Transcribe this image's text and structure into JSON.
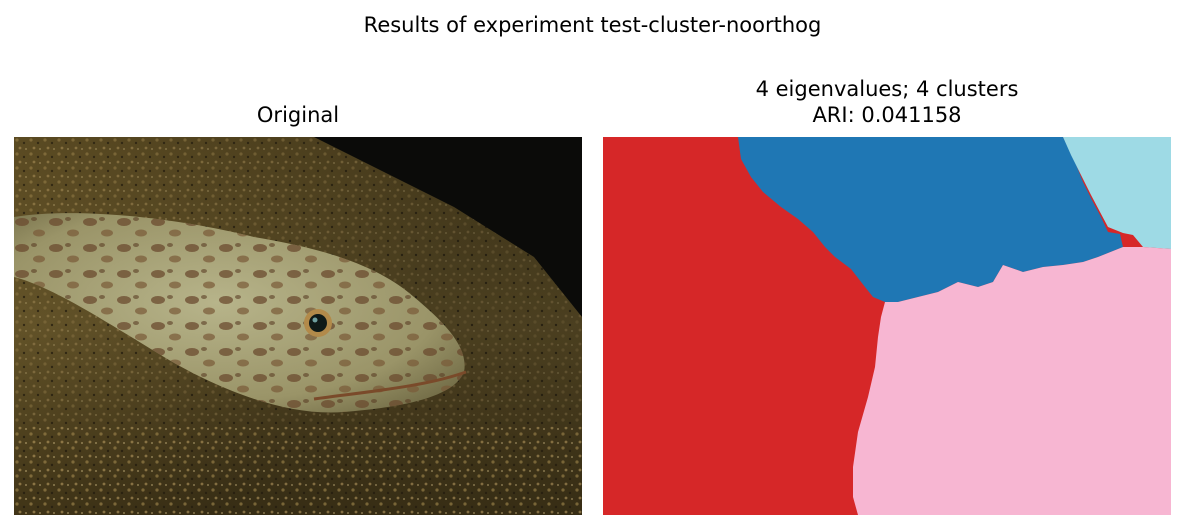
{
  "figure": {
    "suptitle": "Results of experiment test-cluster-noorthog"
  },
  "panels": [
    {
      "title_line1": "Original"
    },
    {
      "title_line1": "4 eigenvalues; 4 clusters",
      "title_line2": "ARI: 0.041158"
    }
  ],
  "colors": {
    "cluster_red": "#d62728",
    "cluster_blue": "#1f77b4",
    "cluster_lightblue": "#9edae5",
    "cluster_pink": "#f7b6d2",
    "sand_dark": "#3d3115",
    "sand_mid": "#6b5a2c",
    "shadow": "#0b0b09",
    "fish_body": "#a7a47a"
  }
}
